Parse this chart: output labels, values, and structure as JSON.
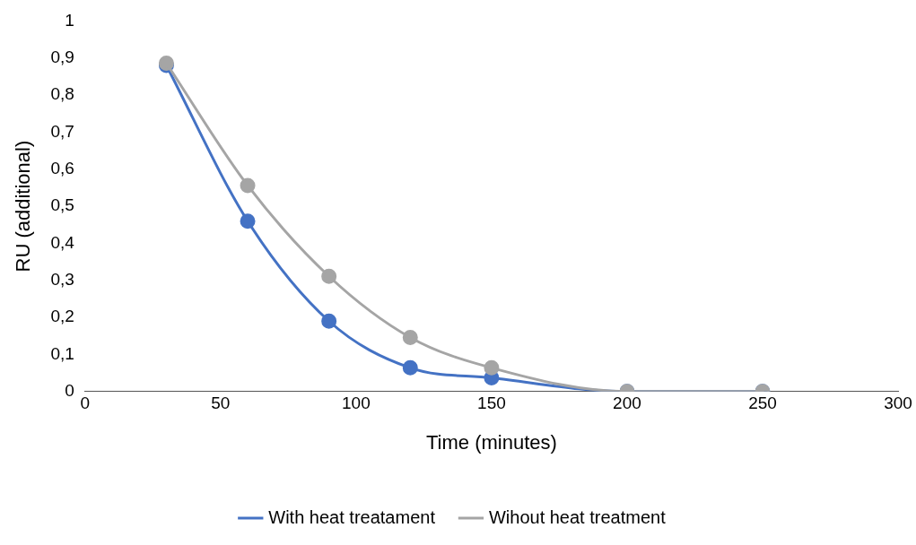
{
  "chart_data": {
    "type": "line",
    "xlabel": "Time (minutes)",
    "ylabel": "RU (additional)",
    "x": [
      30,
      60,
      90,
      120,
      150,
      200,
      250
    ],
    "series": [
      {
        "name": "With heat treatament",
        "color": "#4472c4",
        "values": [
          0.88,
          0.46,
          0.19,
          0.064,
          0.037,
          0,
          0
        ]
      },
      {
        "name": "Wihout heat treatment",
        "color": "#a5a5a5",
        "values": [
          0.886,
          0.556,
          0.311,
          0.146,
          0.064,
          0,
          0
        ]
      }
    ],
    "xlim": [
      0,
      300
    ],
    "xticks": [
      0,
      50,
      100,
      150,
      200,
      250,
      300
    ],
    "ylim": [
      0,
      1
    ],
    "yticks": [
      0,
      {
        "value": 0.1,
        "label": "0,1"
      },
      {
        "value": 0.2,
        "label": "0,2"
      },
      {
        "value": 0.3,
        "label": "0,3"
      },
      {
        "value": 0.4,
        "label": "0,4"
      },
      {
        "value": 0.5,
        "label": "0,5"
      },
      {
        "value": 0.6,
        "label": "0,6"
      },
      {
        "value": 0.7,
        "label": "0,7"
      },
      {
        "value": 0.8,
        "label": "0,8"
      },
      {
        "value": 0.9,
        "label": "0,9"
      },
      1
    ],
    "grid": false,
    "legend": "bottom",
    "marker": "circle",
    "line_style": "solid"
  }
}
